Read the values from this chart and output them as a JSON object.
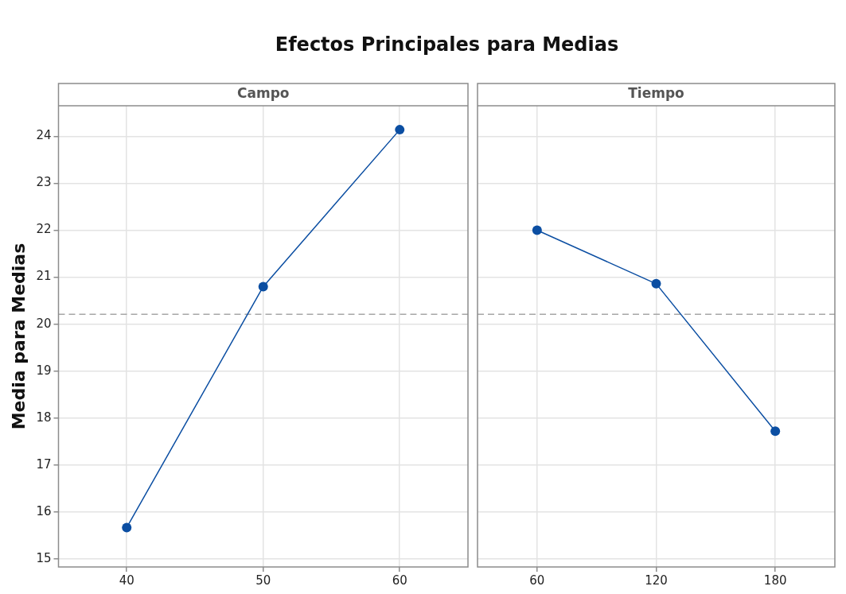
{
  "chart_data": [
    {
      "type": "line",
      "title": "Efectos Principales para Medias",
      "subtitle": "Campo",
      "ylabel": "Media para Medias",
      "categories": [
        "40",
        "50",
        "60"
      ],
      "series": [
        {
          "color": "#0b4ea2",
          "values": [
            15.67,
            20.8,
            24.14
          ]
        }
      ],
      "ylim": [
        14.83,
        24.65
      ],
      "yticks": [
        15,
        16,
        17,
        18,
        19,
        20,
        21,
        22,
        23,
        24
      ],
      "grid": true,
      "marker": "circle",
      "line_style": "solid",
      "legend": false,
      "ref_lines": [
        {
          "axis": "y",
          "value": 20.21,
          "color": "#a6a6a6",
          "line_style": "dashed"
        }
      ]
    },
    {
      "type": "line",
      "subtitle": "Tiempo",
      "categories": [
        "60",
        "120",
        "180"
      ],
      "series": [
        {
          "color": "#0b4ea2",
          "values": [
            22.0,
            20.86,
            17.72
          ]
        }
      ],
      "ylim": [
        14.83,
        24.65
      ],
      "yticks": [
        15,
        16,
        17,
        18,
        19,
        20,
        21,
        22,
        23,
        24
      ],
      "tick_labels": "x",
      "grid": true,
      "marker": "circle",
      "line_style": "solid",
      "legend": false,
      "ref_lines": [
        {
          "axis": "y",
          "value": 20.21,
          "color": "#a6a6a6",
          "line_style": "dashed"
        }
      ]
    }
  ]
}
